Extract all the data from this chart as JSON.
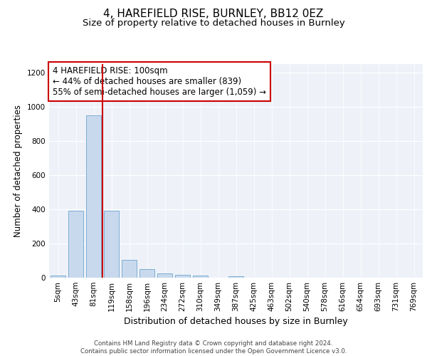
{
  "title": "4, HAREFIELD RISE, BURNLEY, BB12 0EZ",
  "subtitle": "Size of property relative to detached houses in Burnley",
  "xlabel": "Distribution of detached houses by size in Burnley",
  "ylabel": "Number of detached properties",
  "categories": [
    "5sqm",
    "43sqm",
    "81sqm",
    "119sqm",
    "158sqm",
    "196sqm",
    "234sqm",
    "272sqm",
    "310sqm",
    "349sqm",
    "387sqm",
    "425sqm",
    "463sqm",
    "502sqm",
    "540sqm",
    "578sqm",
    "616sqm",
    "654sqm",
    "693sqm",
    "731sqm",
    "769sqm"
  ],
  "values": [
    13,
    390,
    950,
    390,
    105,
    50,
    25,
    15,
    12,
    0,
    10,
    0,
    0,
    0,
    0,
    0,
    0,
    0,
    0,
    0,
    0
  ],
  "bar_color": "#c9d9ed",
  "bar_edge_color": "#7aadd4",
  "marker_line_color": "#cc0000",
  "annotation_text": "4 HAREFIELD RISE: 100sqm\n← 44% of detached houses are smaller (839)\n55% of semi-detached houses are larger (1,059) →",
  "annotation_box_color": "#cc0000",
  "ylim": [
    0,
    1250
  ],
  "yticks": [
    0,
    200,
    400,
    600,
    800,
    1000,
    1200
  ],
  "background_color": "#eef2f8",
  "grid_color": "#ffffff",
  "footer_text": "Contains HM Land Registry data © Crown copyright and database right 2024.\nContains public sector information licensed under the Open Government Licence v3.0.",
  "title_fontsize": 11,
  "subtitle_fontsize": 9.5,
  "xlabel_fontsize": 9,
  "ylabel_fontsize": 8.5,
  "tick_fontsize": 7.5,
  "annotation_fontsize": 8.5
}
